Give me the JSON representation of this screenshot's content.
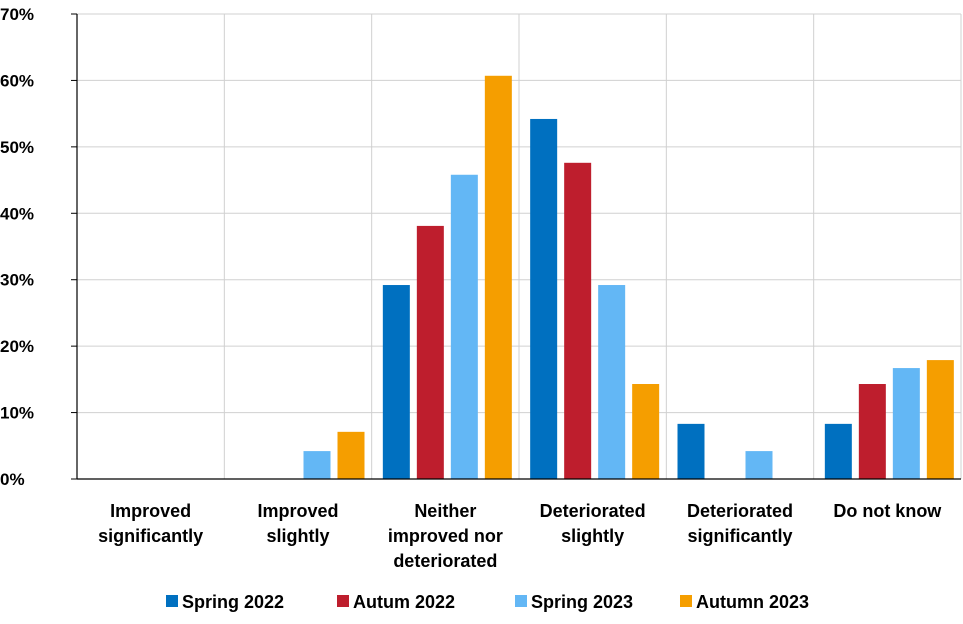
{
  "chart_data": {
    "type": "bar",
    "title": "",
    "xlabel": "",
    "ylabel": "",
    "ylim": [
      0,
      70
    ],
    "yticks": [
      "0%",
      "10%",
      "20%",
      "30%",
      "40%",
      "50%",
      "60%",
      "70%"
    ],
    "categories": [
      [
        "Improved",
        "significantly"
      ],
      [
        "Improved",
        "slightly"
      ],
      [
        "Neither",
        "improved nor",
        "deteriorated"
      ],
      [
        "Deteriorated",
        "slightly"
      ],
      [
        "Deteriorated",
        "significantly"
      ],
      [
        "Do not know"
      ]
    ],
    "series": [
      {
        "name": "Spring 2022",
        "color": "#0070C0",
        "values": [
          0,
          0,
          29.2,
          54.2,
          8.3,
          8.3
        ]
      },
      {
        "name": "Autum 2022",
        "color": "#BE1E2D",
        "values": [
          0,
          0,
          38.1,
          47.6,
          0,
          14.3
        ]
      },
      {
        "name": "Spring 2023",
        "color": "#63B7F5",
        "values": [
          0,
          4.2,
          45.8,
          29.2,
          4.2,
          16.7
        ]
      },
      {
        "name": "Autumn 2023",
        "color": "#F59E00",
        "values": [
          0,
          7.1,
          60.7,
          14.3,
          0,
          17.9
        ]
      }
    ],
    "grid": true,
    "legend_position": "bottom"
  }
}
